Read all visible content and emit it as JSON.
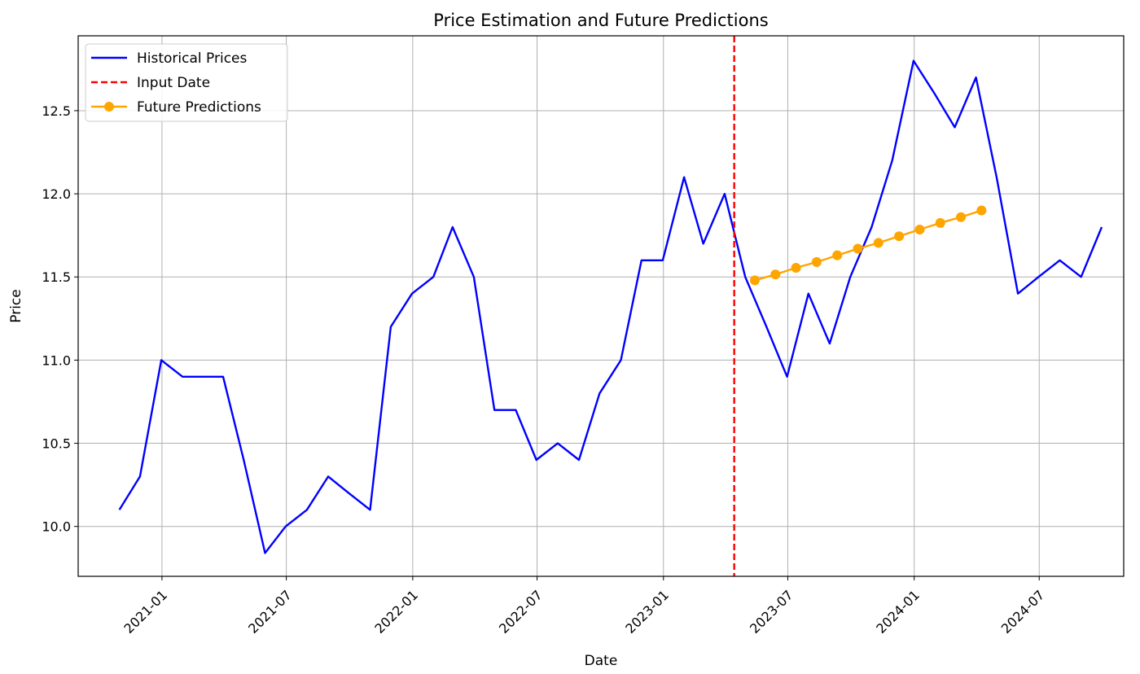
{
  "chart_data": {
    "type": "line",
    "title": "Price Estimation and Future Predictions",
    "xlabel": "Date",
    "ylabel": "Price",
    "x_ticks": [
      "2021-01",
      "2021-07",
      "2022-01",
      "2022-07",
      "2023-01",
      "2023-07",
      "2024-01",
      "2024-07"
    ],
    "x_tick_rotation_deg": 45,
    "y_ticks": [
      10.0,
      10.5,
      11.0,
      11.5,
      12.0,
      12.5
    ],
    "ylim": [
      9.7,
      12.95
    ],
    "xlim": [
      "2020-09-01",
      "2024-11-01"
    ],
    "grid": true,
    "legend_position": "top-left",
    "legend": [
      {
        "label": "Historical Prices",
        "style": "line",
        "color": "#0000ff"
      },
      {
        "label": "Input Date",
        "style": "dashed",
        "color": "#ff0000"
      },
      {
        "label": "Future Predictions",
        "style": "line-marker",
        "color": "#ffa500"
      }
    ],
    "series": [
      {
        "name": "Historical Prices",
        "color": "#0000ff",
        "x": [
          "2020-10-31",
          "2020-11-30",
          "2020-12-31",
          "2021-01-31",
          "2021-02-28",
          "2021-03-31",
          "2021-04-30",
          "2021-05-31",
          "2021-06-30",
          "2021-07-31",
          "2021-08-31",
          "2021-09-30",
          "2021-10-31",
          "2021-11-30",
          "2021-12-31",
          "2022-01-31",
          "2022-02-28",
          "2022-03-31",
          "2022-04-30",
          "2022-05-31",
          "2022-06-30",
          "2022-07-31",
          "2022-08-31",
          "2022-09-30",
          "2022-10-31",
          "2022-11-30",
          "2022-12-31",
          "2023-01-31",
          "2023-02-28",
          "2023-03-31",
          "2023-04-30",
          "2023-05-31",
          "2023-06-30",
          "2023-07-31",
          "2023-08-31",
          "2023-09-30",
          "2023-10-31",
          "2023-11-30",
          "2023-12-31",
          "2024-01-31",
          "2024-02-29",
          "2024-03-31",
          "2024-04-30",
          "2024-05-31",
          "2024-06-30",
          "2024-07-31",
          "2024-08-31",
          "2024-09-30"
        ],
        "values": [
          10.1,
          10.3,
          11.0,
          10.9,
          10.9,
          10.9,
          10.4,
          9.84,
          10.0,
          10.1,
          10.3,
          10.2,
          10.1,
          11.2,
          11.4,
          11.5,
          11.8,
          11.5,
          10.7,
          10.7,
          10.4,
          10.5,
          10.4,
          10.8,
          11.0,
          11.6,
          11.6,
          12.1,
          11.7,
          12.0,
          11.5,
          11.2,
          10.9,
          11.4,
          11.1,
          11.5,
          11.8,
          12.2,
          12.8,
          12.6,
          12.4,
          12.7,
          12.1,
          11.4,
          11.5,
          11.6,
          11.5,
          11.8
        ]
      },
      {
        "name": "Future Predictions",
        "color": "#ffa500",
        "marker": "circle",
        "x": [
          "2023-05-14",
          "2023-06-13",
          "2023-07-13",
          "2023-08-12",
          "2023-09-11",
          "2023-10-11",
          "2023-11-10",
          "2023-12-10",
          "2024-01-09",
          "2024-02-08",
          "2024-03-09",
          "2024-04-08"
        ],
        "values": [
          11.48,
          11.515,
          11.555,
          11.59,
          11.63,
          11.67,
          11.705,
          11.745,
          11.785,
          11.825,
          11.86,
          11.9
        ]
      }
    ],
    "vertical_lines": [
      {
        "name": "Input Date",
        "x": "2023-04-14",
        "color": "#ff0000",
        "style": "dashed"
      }
    ]
  }
}
